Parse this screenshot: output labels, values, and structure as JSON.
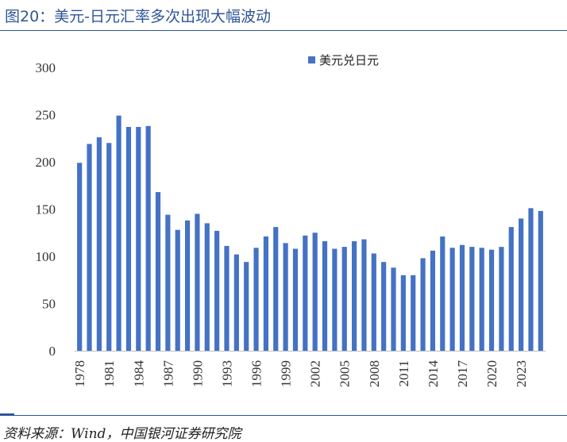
{
  "figure": {
    "title": "图20：美元-日元汇率多次出现大幅波动",
    "source": "资料来源：Wind，中国银河证券研究院"
  },
  "colors": {
    "bar": "#4472C4",
    "rule": "#2F5597",
    "axis": "#BFBFBF"
  },
  "chart_data": {
    "type": "bar",
    "title": "",
    "xlabel": "",
    "ylabel": "",
    "ylim": [
      0,
      300
    ],
    "yticks": [
      0,
      50,
      100,
      150,
      200,
      250,
      300
    ],
    "grid": false,
    "legend_position": "top-right",
    "categories": [
      "1978",
      "1979",
      "1980",
      "1981",
      "1982",
      "1983",
      "1984",
      "1985",
      "1986",
      "1987",
      "1988",
      "1989",
      "1990",
      "1991",
      "1992",
      "1993",
      "1994",
      "1995",
      "1996",
      "1997",
      "1998",
      "1999",
      "2000",
      "2001",
      "2002",
      "2003",
      "2004",
      "2005",
      "2006",
      "2007",
      "2008",
      "2009",
      "2010",
      "2011",
      "2012",
      "2013",
      "2014",
      "2015",
      "2016",
      "2017",
      "2018",
      "2019",
      "2020",
      "2021",
      "2022",
      "2023",
      "2024",
      "2025"
    ],
    "xtick_labels": [
      "1978",
      "1981",
      "1984",
      "1987",
      "1990",
      "1993",
      "1996",
      "1999",
      "2002",
      "2005",
      "2008",
      "2011",
      "2014",
      "2017",
      "2020",
      "2023"
    ],
    "series": [
      {
        "name": "美元兑日元",
        "values": [
          199,
          219,
          226,
          220,
          249,
          237,
          237,
          238,
          168,
          144,
          128,
          138,
          145,
          135,
          127,
          111,
          102,
          94,
          109,
          121,
          131,
          114,
          108,
          122,
          125,
          116,
          108,
          110,
          116,
          118,
          103,
          94,
          88,
          80,
          80,
          98,
          106,
          121,
          109,
          112,
          110,
          109,
          107,
          110,
          131,
          140,
          151,
          148
        ]
      }
    ]
  }
}
